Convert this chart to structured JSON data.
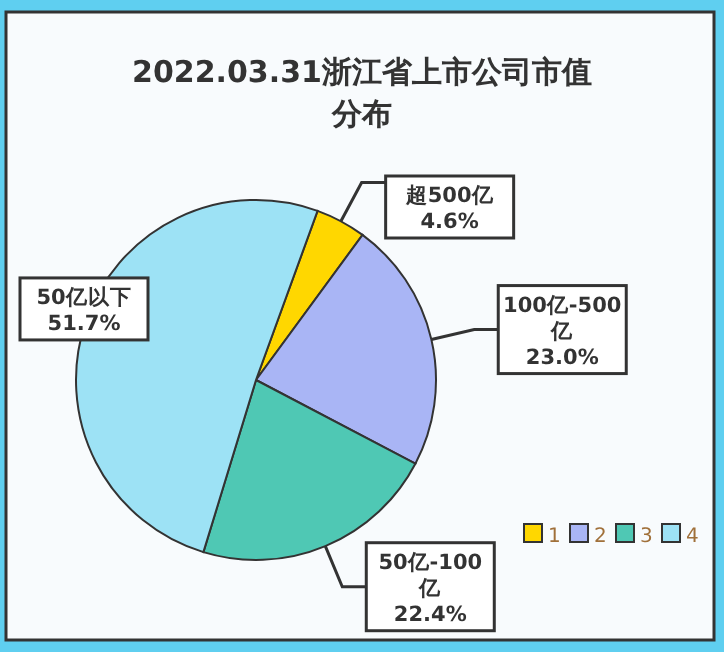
{
  "chart_data": {
    "type": "pie",
    "title": "2022.03.31浙江省上市公司市值分布",
    "categories": [
      "1",
      "2",
      "3",
      "4"
    ],
    "values": [
      4.6,
      23.0,
      22.4,
      51.7
    ],
    "colors": [
      "#ffd700",
      "#a9b5f5",
      "#4fc8b4",
      "#9de2f5"
    ],
    "value_labels": [
      "超500亿\n4.6%",
      "100亿-500\n亿\n23.0%",
      "50亿-100\n亿\n22.4%",
      "50亿以下\n51.7%"
    ],
    "legend": "bottom right"
  }
}
